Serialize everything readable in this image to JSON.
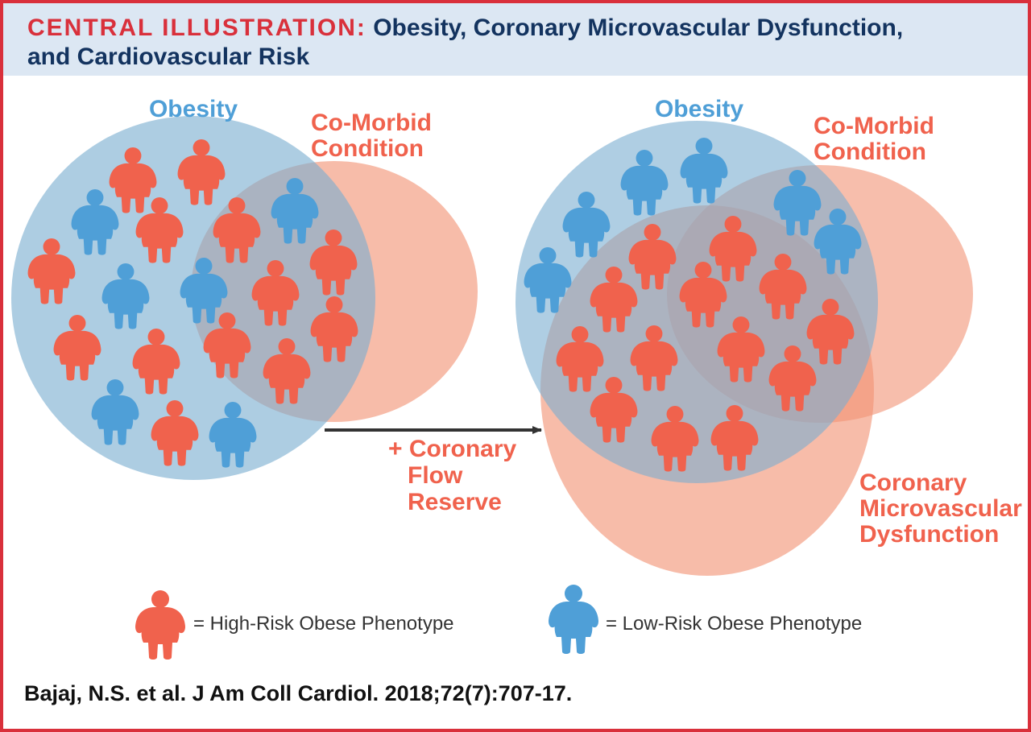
{
  "header": {
    "label": "CENTRAL ILLUSTRATION:",
    "title_line1": "Obesity, Coronary Microvascular Dysfunction,",
    "title_line2": "and Cardiovascular Risk"
  },
  "left_diagram": {
    "obesity_label": "Obesity",
    "comorbid_line1": "Co-Morbid",
    "comorbid_line2": "Condition"
  },
  "arrow": {
    "line1": "+ Coronary",
    "line2": "Flow",
    "line3": "Reserve"
  },
  "right_diagram": {
    "obesity_label": "Obesity",
    "comorbid_line1": "Co-Morbid",
    "comorbid_line2": "Condition",
    "cmd_line1": "Coronary",
    "cmd_line2": "Microvascular",
    "cmd_line3": "Dysfunction"
  },
  "legend": {
    "high_risk": "= High-Risk Obese Phenotype",
    "low_risk": "= Low-Risk Obese Phenotype"
  },
  "citation": "Bajaj, N.S. et al. J Am Coll Cardiol. 2018;72(7):707-17.",
  "colors": {
    "high_risk": "#f0624d",
    "low_risk": "#4f9fd7",
    "obesity_circle": "#7aaed0",
    "comorbid_circle": "#f29375",
    "label_blue": "#4f9fd7",
    "label_orange": "#f0624d",
    "border": "#d9303b",
    "header_bg": "#dce7f3",
    "header_text": "#13335f"
  }
}
